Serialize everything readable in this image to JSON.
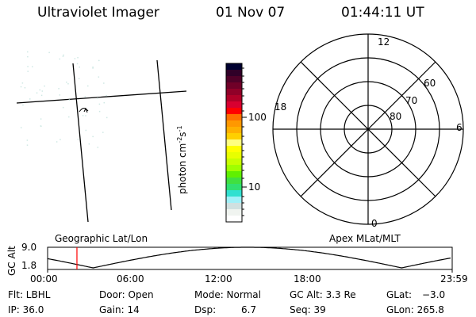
{
  "header": {
    "instrument": "Ultraviolet Imager",
    "date": "01 Nov 07",
    "time": "01:44:11 UT"
  },
  "colorbar": {
    "label": "photon cm",
    "label_sup1": "-2",
    "label_mid": "s",
    "label_sup2": "-1",
    "ticks": [
      "100",
      "10"
    ],
    "colors": [
      "#000030",
      "#300028",
      "#500028",
      "#700028",
      "#900028",
      "#b00028",
      "#d80030",
      "#ff0000",
      "#ff7000",
      "#ff9800",
      "#ffb000",
      "#ffd000",
      "#ffff80",
      "#ffff00",
      "#e8ff00",
      "#c8ff00",
      "#a0ff00",
      "#60f000",
      "#40e040",
      "#30e070",
      "#30e0d0",
      "#a0f0f8",
      "#d0e0e0",
      "#f0f4f0",
      "#ffffff"
    ]
  },
  "polar": {
    "mlt_labels": {
      "top": "12",
      "bottom": "0",
      "left": "18",
      "right": "6"
    },
    "lat_labels": [
      "80",
      "70",
      "60"
    ]
  },
  "timeline": {
    "left_label": "Geographic Lat/Lon",
    "right_label": "Apex MLat/MLT",
    "ylabel": "GC Alt",
    "y_ticks": [
      "9.0",
      "1.8"
    ],
    "x_ticks": [
      "00:00",
      "06:00",
      "12:00",
      "18:00",
      "23:59"
    ],
    "current_time_hours": 1.74,
    "marker_color": "#ff0000"
  },
  "status": {
    "flt": "Flt: LBHL",
    "ip": "IP: 36.0",
    "door": "Door: Open",
    "gain": "Gain: 14",
    "mode": "Mode: Normal",
    "dsp_label": "Dsp:",
    "dsp_value": "6.7",
    "gcalt": "GC Alt: 3.3 Re",
    "seq": "Seq: 39",
    "glat_label": "GLat:",
    "glat_value": "−3.0",
    "glon": "GLon: 265.8"
  }
}
